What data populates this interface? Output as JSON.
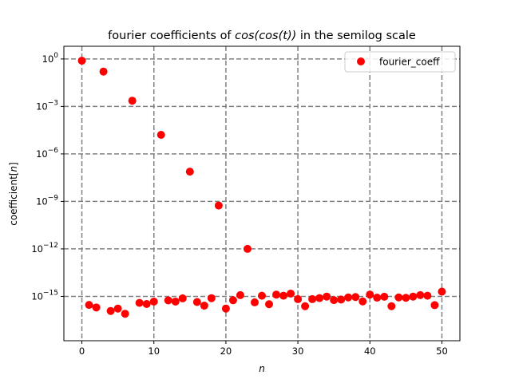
{
  "chart_data": {
    "type": "scatter",
    "title_prefix": "fourier coefficients of ",
    "title_math": "cos(cos(t))",
    "title_suffix": " in the semilog scale",
    "xlabel": "n",
    "ylabel_prefix": "coefficient[",
    "ylabel_math": "n",
    "ylabel_suffix": "]",
    "xlim": [
      -2.5,
      52.5
    ],
    "ylim_log10": [
      -17.8,
      0.8
    ],
    "yscale": "log",
    "grid": true,
    "legend_position": "top-right",
    "x_ticks": [
      0,
      10,
      20,
      30,
      40,
      50
    ],
    "y_ticks": [
      {
        "base": "10",
        "exp": "0",
        "log": 0
      },
      {
        "base": "10",
        "exp": "−3",
        "log": -3
      },
      {
        "base": "10",
        "exp": "−6",
        "log": -6
      },
      {
        "base": "10",
        "exp": "−9",
        "log": -9
      },
      {
        "base": "10",
        "exp": "−12",
        "log": -12
      },
      {
        "base": "10",
        "exp": "−15",
        "log": -15
      }
    ],
    "series": [
      {
        "name": "fourier_coeff",
        "color": "#ff0000",
        "x": [
          0,
          1,
          2,
          3,
          4,
          5,
          6,
          7,
          8,
          9,
          10,
          11,
          12,
          13,
          14,
          15,
          16,
          17,
          18,
          19,
          20,
          21,
          22,
          23,
          24,
          25,
          26,
          27,
          28,
          29,
          30,
          31,
          32,
          33,
          34,
          35,
          36,
          37,
          38,
          39,
          40,
          41,
          42,
          43,
          44,
          45,
          46,
          47,
          48,
          49,
          50
        ],
        "y": [
          "7.7e-1",
          "2.9e-16",
          "2.0e-16",
          "1.59e-1",
          "1.2e-16",
          "1.7e-16",
          "8.0e-17",
          "2.3e-3",
          "3.9e-16",
          "3.3e-16",
          "4.7e-16",
          "1.6e-5",
          "5.6e-16",
          "4.7e-16",
          "7.5e-16",
          "7.6e-8",
          "4.4e-16",
          "2.6e-16",
          "7.7e-16",
          "5.5e-10",
          "1.7e-16",
          "5.7e-16",
          "1.2e-15",
          "1.0e-12",
          "4.2e-16",
          "1.1e-15",
          "3.2e-16",
          "1.3e-15",
          "1.1e-15",
          "1.5e-15",
          "6.7e-16",
          "2.4e-16",
          "6.7e-16",
          "7.8e-16",
          "9.7e-16",
          "5.8e-16",
          "6.3e-16",
          "8.6e-16",
          "9.1e-16",
          "4.8e-16",
          "1.3e-15",
          "8.3e-16",
          "9.5e-16",
          "2.4e-16",
          "8.6e-16",
          "8.1e-16",
          "9.7e-16",
          "1.2e-15",
          "1.1e-15",
          "2.8e-16",
          "2.0e-15"
        ]
      }
    ]
  }
}
